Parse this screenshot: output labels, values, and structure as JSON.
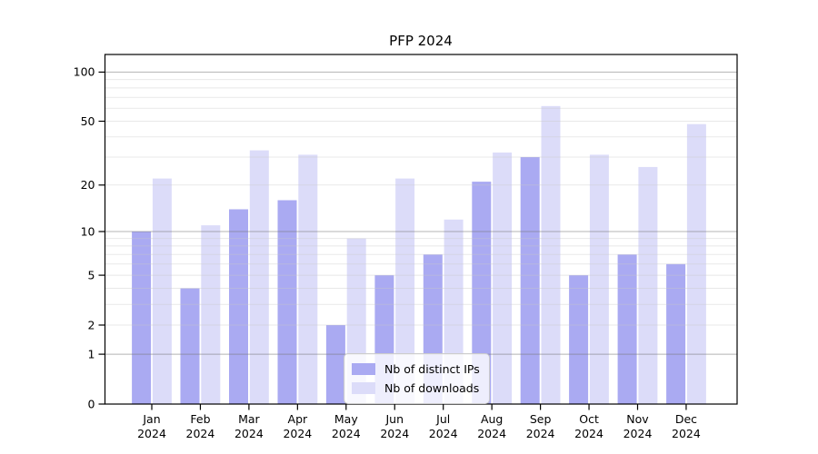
{
  "chart_data": {
    "type": "bar",
    "title": "PFP 2024",
    "categories": [
      "Jan",
      "Feb",
      "Mar",
      "Apr",
      "May",
      "Jun",
      "Jul",
      "Aug",
      "Sep",
      "Oct",
      "Nov",
      "Dec"
    ],
    "category_year": "2024",
    "series": [
      {
        "key": "distinct-ips",
        "name": "Nb of distinct IPs",
        "color": "#aaaaf2",
        "values": [
          10,
          4,
          14,
          16,
          2,
          5,
          7,
          21,
          30,
          5,
          7,
          6
        ]
      },
      {
        "key": "downloads",
        "name": "Nb of downloads",
        "color": "#dcdcf9",
        "values": [
          22,
          11,
          33,
          31,
          9,
          22,
          12,
          32,
          62,
          31,
          26,
          48
        ]
      }
    ],
    "xlabel": "",
    "ylabel": "",
    "yscale": "log1p",
    "yticks": [
      0,
      1,
      2,
      5,
      10,
      20,
      50,
      100
    ],
    "ylim": [
      0,
      128
    ],
    "grid": "on",
    "legend_position": "lower center",
    "frame": "box"
  }
}
